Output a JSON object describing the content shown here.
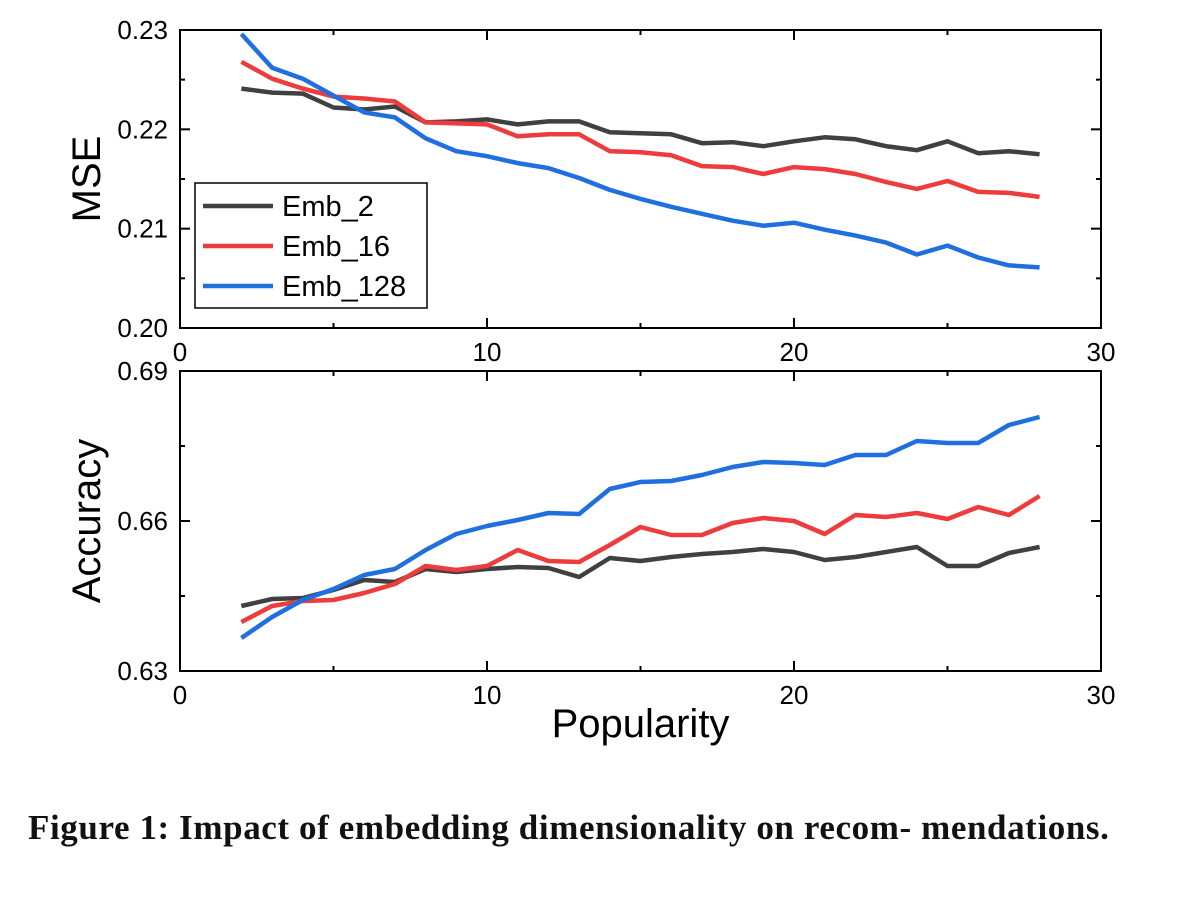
{
  "caption": "Figure 1: Impact of embedding dimensionality on recom- mendations.",
  "chart_data": [
    {
      "type": "line",
      "ylabel": "MSE",
      "xlabel": "",
      "xlim": [
        0,
        30
      ],
      "ylim": [
        0.2,
        0.23
      ],
      "xticks": [
        "0",
        "10",
        "20",
        "30"
      ],
      "yticks": [
        "0.20",
        "0.21",
        "0.22",
        "0.23"
      ],
      "legend_placement": "lower-left",
      "grid": false,
      "x": [
        2,
        3,
        4,
        5,
        6,
        7,
        8,
        9,
        10,
        11,
        12,
        13,
        14,
        15,
        16,
        17,
        18,
        19,
        20,
        21,
        22,
        23,
        24,
        25,
        26,
        27,
        28
      ],
      "series": [
        {
          "name": "Emb_2",
          "color": "#404040",
          "values": [
            0.2241,
            0.2237,
            0.2236,
            0.2222,
            0.222,
            0.2223,
            0.2207,
            0.2208,
            0.221,
            0.2205,
            0.2208,
            0.2208,
            0.2197,
            0.2196,
            0.2195,
            0.2186,
            0.2187,
            0.2183,
            0.2188,
            0.2192,
            0.219,
            0.2183,
            0.2179,
            0.2188,
            0.2176,
            0.2178,
            0.2175
          ]
        },
        {
          "name": "Emb_16",
          "color": "#ee3b3b",
          "values": [
            0.2268,
            0.2251,
            0.2241,
            0.2233,
            0.2231,
            0.2228,
            0.2207,
            0.2206,
            0.2205,
            0.2193,
            0.2195,
            0.2195,
            0.2178,
            0.2177,
            0.2174,
            0.2163,
            0.2162,
            0.2155,
            0.2162,
            0.216,
            0.2155,
            0.2147,
            0.214,
            0.2148,
            0.2137,
            0.2136,
            0.2132
          ]
        },
        {
          "name": "Emb_128",
          "color": "#1f6fe0",
          "values": [
            0.2296,
            0.2262,
            0.2251,
            0.2234,
            0.2217,
            0.2212,
            0.2191,
            0.2178,
            0.2173,
            0.2166,
            0.2161,
            0.2151,
            0.2139,
            0.213,
            0.2122,
            0.2115,
            0.2108,
            0.2103,
            0.2106,
            0.2099,
            0.2093,
            0.2086,
            0.2074,
            0.2083,
            0.2071,
            0.2063,
            0.2061
          ]
        }
      ]
    },
    {
      "type": "line",
      "ylabel": "Accuracy",
      "xlabel": "Popularity",
      "xlim": [
        0,
        30
      ],
      "ylim": [
        0.63,
        0.69
      ],
      "xticks": [
        "0",
        "10",
        "20",
        "30"
      ],
      "yticks": [
        "0.63",
        "0.66",
        "0.69"
      ],
      "grid": false,
      "x": [
        2,
        3,
        4,
        5,
        6,
        7,
        8,
        9,
        10,
        11,
        12,
        13,
        14,
        15,
        16,
        17,
        18,
        19,
        20,
        21,
        22,
        23,
        24,
        25,
        26,
        27,
        28
      ],
      "series": [
        {
          "name": "Emb_2",
          "color": "#404040",
          "values": [
            0.643,
            0.6444,
            0.6446,
            0.6462,
            0.6482,
            0.6478,
            0.6504,
            0.6498,
            0.6504,
            0.6508,
            0.6506,
            0.6488,
            0.6526,
            0.652,
            0.6528,
            0.6534,
            0.6538,
            0.6544,
            0.6538,
            0.6522,
            0.6528,
            0.6538,
            0.6548,
            0.651,
            0.651,
            0.6536,
            0.6548
          ]
        },
        {
          "name": "Emb_16",
          "color": "#ee3b3b",
          "values": [
            0.6398,
            0.643,
            0.644,
            0.6442,
            0.6456,
            0.6474,
            0.651,
            0.6502,
            0.651,
            0.6542,
            0.652,
            0.6518,
            0.6552,
            0.6588,
            0.6572,
            0.6572,
            0.6596,
            0.6606,
            0.66,
            0.6574,
            0.6612,
            0.6608,
            0.6616,
            0.6604,
            0.6628,
            0.6612,
            0.665
          ]
        },
        {
          "name": "Emb_128",
          "color": "#1f6fe0",
          "values": [
            0.6366,
            0.6408,
            0.6442,
            0.6464,
            0.6492,
            0.6504,
            0.6542,
            0.6574,
            0.659,
            0.6602,
            0.6616,
            0.6614,
            0.6664,
            0.6678,
            0.668,
            0.6692,
            0.6708,
            0.6718,
            0.6716,
            0.6712,
            0.6732,
            0.6732,
            0.676,
            0.6756,
            0.6756,
            0.6792,
            0.6808
          ]
        }
      ]
    }
  ]
}
